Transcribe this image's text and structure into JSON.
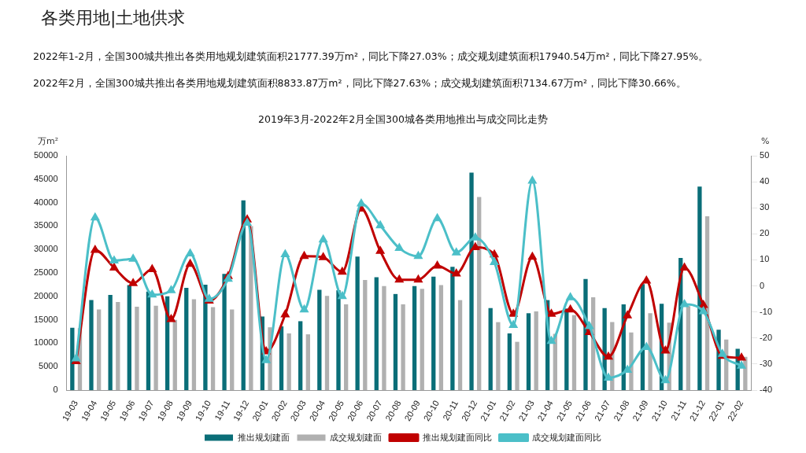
{
  "chart_data": {
    "type": "bar",
    "title": "各类用地|土地供求",
    "annotations": [
      "2022年1-2月，全国300城共推出各类用地规划建筑面积21777.39万m²，同比下降27.03%；成交规划建筑面积17940.54万m²，同比下降27.95%。",
      "2022年2月，全国300城共推出各类用地规划建筑面积8833.87万m²，同比下降27.63%；成交规划建筑面积7134.67万m²，同比下降30.66%。"
    ],
    "subtitle": "2019年3月-2022年2月全国300城各类用地推出与成交同比走势",
    "ylabel": "万m²",
    "y2label": "%",
    "categories": [
      "19-03",
      "19-04",
      "19-05",
      "19-06",
      "19-07",
      "19-08",
      "19-09",
      "19-10",
      "19-11",
      "19-12",
      "20-01",
      "20-02",
      "20-03",
      "20-04",
      "20-05",
      "20-06",
      "20-07",
      "20-08",
      "20-09",
      "20-10",
      "20-11",
      "20-12",
      "21-01",
      "21-02",
      "21-03",
      "21-04",
      "21-05",
      "21-06",
      "21-07",
      "21-08",
      "21-09",
      "21-10",
      "21-11",
      "21-12",
      "22-01",
      "22-02"
    ],
    "series": [
      {
        "name": "推出规划建面",
        "color": "#0a6e78",
        "values": [
          13300,
          19200,
          20300,
          22400,
          21000,
          20000,
          21800,
          22500,
          24800,
          40500,
          15700,
          13600,
          14700,
          21400,
          21300,
          28500,
          24100,
          20500,
          22200,
          24200,
          26300,
          46400,
          17500,
          12100,
          16400,
          19200,
          17400,
          23700,
          17500,
          18300,
          22600,
          18400,
          28200,
          43400,
          12900,
          8800
        ]
      },
      {
        "name": "成交规划建面",
        "color": "#b0b0b0",
        "values": [
          13200,
          17200,
          18800,
          17800,
          18000,
          15000,
          19400,
          17700,
          17200,
          35000,
          13400,
          12100,
          11900,
          20100,
          18300,
          23500,
          22200,
          18300,
          21600,
          22400,
          19200,
          41200,
          14500,
          10300,
          16800,
          12000,
          16000,
          19800,
          14500,
          12300,
          16400,
          14400,
          17900,
          37100,
          10800,
          7100
        ]
      },
      {
        "name": "推出规划建面同比",
        "type": "line",
        "axis": "y2",
        "color": "#c00000",
        "values": [
          -29,
          13.8,
          7,
          1,
          6.4,
          -12.8,
          8.4,
          -5.7,
          3.7,
          25.5,
          -25.2,
          -11,
          11.4,
          11,
          5.4,
          29.6,
          13.4,
          2.4,
          2.4,
          7.7,
          4.7,
          14.8,
          12,
          -10.8,
          11.1,
          -10.8,
          -9.1,
          -17.8,
          -27.2,
          -11.4,
          2,
          -24.9,
          7,
          -7.4,
          -26.9,
          -27.6
        ]
      },
      {
        "name": "成交规划建面同比",
        "type": "line",
        "axis": "y2",
        "color": "#4bbfc8",
        "values": [
          -27.9,
          26.2,
          9.7,
          10.4,
          -3.4,
          -1.7,
          12.4,
          -5,
          2.7,
          24.2,
          -28.6,
          12.1,
          -9.1,
          17.8,
          -4,
          31.6,
          23.2,
          14.5,
          11.4,
          25.9,
          12.8,
          18.5,
          9.1,
          -15.1,
          40.3,
          -21.2,
          -4.4,
          -15.5,
          -35.3,
          -32.3,
          -23.5,
          -36.3,
          -7.1,
          -9.8,
          -26.2,
          -30.7
        ]
      }
    ],
    "ylim": [
      0,
      50000
    ],
    "yticks": [
      0,
      5000,
      10000,
      15000,
      20000,
      25000,
      30000,
      35000,
      40000,
      45000,
      50000
    ],
    "y2lim": [
      -40,
      50
    ],
    "y2ticks": [
      -40,
      -30,
      -20,
      -10,
      0,
      10,
      20,
      30,
      40,
      50
    ],
    "grid": false,
    "legend": "bottom",
    "marker": "triangle",
    "line_style": "solid"
  }
}
